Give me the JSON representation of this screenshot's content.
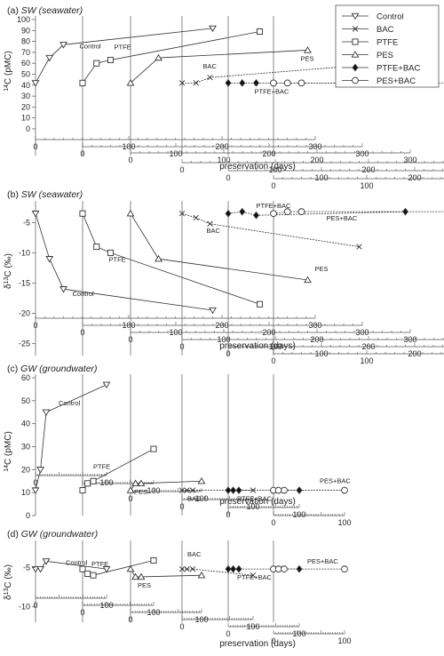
{
  "figure": {
    "legend": [
      {
        "name": "Control",
        "marker": "tri-down",
        "fill": "#ffffff"
      },
      {
        "name": "BAC",
        "marker": "x",
        "fill": "none"
      },
      {
        "name": "PTFE",
        "marker": "square",
        "fill": "#ffffff"
      },
      {
        "name": "PES",
        "marker": "tri-up",
        "fill": "#ffffff"
      },
      {
        "name": "PTFE+BAC",
        "marker": "diamond",
        "fill": "#111111"
      },
      {
        "name": "PES+BAC",
        "marker": "circle",
        "fill": "#ffffff"
      }
    ],
    "colors": {
      "line": "#333333",
      "axis": "#555555",
      "text": "#222222"
    }
  },
  "chart_data": [
    {
      "panel": "(a)",
      "title": "(a)",
      "title_italic": "SW (seawater)",
      "type": "line",
      "ylabel": "14C (pMC)",
      "ylabel_sup": "14",
      "ylabel_rest": "C (pMC)",
      "xlabel": "preservation (days)",
      "ylim": [
        0,
        100
      ],
      "yticks": [
        0,
        10,
        20,
        30,
        40,
        50,
        60,
        70,
        80,
        90,
        100
      ],
      "xlim": [
        0,
        300
      ],
      "series": [
        {
          "name": "Control",
          "marker": "tri-down",
          "x": [
            0,
            15,
            30,
            190
          ],
          "y": [
            42,
            65,
            77,
            92
          ]
        },
        {
          "name": "PTFE",
          "marker": "square",
          "x": [
            0,
            15,
            30,
            190
          ],
          "y": [
            42,
            60,
            63,
            89
          ]
        },
        {
          "name": "PES",
          "marker": "tri-up",
          "x": [
            0,
            30,
            190
          ],
          "y": [
            42,
            65,
            72
          ]
        },
        {
          "name": "BAC",
          "marker": "x",
          "x": [
            0,
            15,
            30,
            190
          ],
          "y": [
            42,
            42,
            47,
            58
          ]
        },
        {
          "name": "PTFE+BAC",
          "marker": "diamond",
          "x": [
            0,
            15,
            30,
            190
          ],
          "y": [
            42,
            42,
            42,
            42
          ]
        },
        {
          "name": "PES+BAC",
          "marker": "circle",
          "x": [
            0,
            15,
            30,
            190
          ],
          "y": [
            42,
            42,
            42,
            42
          ]
        }
      ]
    },
    {
      "panel": "(b)",
      "title": "(b)",
      "title_italic": "SW (seawater)",
      "type": "line",
      "ylabel": "δ13C (‰)",
      "ylabel_pre": "δ",
      "ylabel_sup": "13",
      "ylabel_rest": "C (‰)",
      "xlabel": "preservation (days)",
      "ylim": [
        -27,
        -2
      ],
      "yticks": [
        -5,
        -10,
        -15,
        -20,
        -25
      ],
      "xlim": [
        0,
        300
      ],
      "series": [
        {
          "name": "Control",
          "marker": "tri-down",
          "x": [
            0,
            15,
            30,
            190
          ],
          "y": [
            -3.5,
            -11,
            -16,
            -19.5
          ]
        },
        {
          "name": "PTFE",
          "marker": "square",
          "x": [
            0,
            15,
            30,
            190
          ],
          "y": [
            -3.5,
            -9,
            -10,
            -18.5
          ]
        },
        {
          "name": "PES",
          "marker": "tri-up",
          "x": [
            0,
            30,
            190
          ],
          "y": [
            -3.5,
            -11,
            -14.5
          ]
        },
        {
          "name": "BAC",
          "marker": "x",
          "x": [
            0,
            15,
            30,
            190
          ],
          "y": [
            -3.5,
            -4.2,
            -5.2,
            -9
          ]
        },
        {
          "name": "PTFE+BAC",
          "marker": "diamond",
          "x": [
            0,
            15,
            30,
            190
          ],
          "y": [
            -3.5,
            -3.2,
            -3.8,
            -3.2
          ]
        },
        {
          "name": "PES+BAC",
          "marker": "circle",
          "x": [
            0,
            15,
            30,
            190
          ],
          "y": [
            -3.5,
            -3.2,
            -3.2,
            -3.2
          ]
        }
      ]
    },
    {
      "panel": "(c)",
      "title": "(c)",
      "title_italic": "GW (groundwater)",
      "type": "line",
      "ylabel": "14C (pMC)",
      "ylabel_sup": "14",
      "ylabel_rest": "C (pMC)",
      "xlabel": "preservation (days)",
      "ylim": [
        0,
        60
      ],
      "yticks": [
        0,
        10,
        20,
        30,
        40,
        50,
        60
      ],
      "xlim": [
        0,
        150
      ],
      "series": [
        {
          "name": "Control",
          "marker": "tri-down",
          "x": [
            0,
            7,
            15,
            100
          ],
          "y": [
            11,
            20,
            45,
            57
          ]
        },
        {
          "name": "PTFE",
          "marker": "square",
          "x": [
            0,
            7,
            15,
            100
          ],
          "y": [
            11,
            14,
            15,
            29
          ]
        },
        {
          "name": "PES",
          "marker": "tri-up",
          "x": [
            0,
            7,
            15,
            100
          ],
          "y": [
            11,
            14,
            14,
            15
          ]
        },
        {
          "name": "BAC",
          "marker": "x",
          "x": [
            0,
            7,
            15,
            100
          ],
          "y": [
            11,
            11,
            11,
            11
          ]
        },
        {
          "name": "PTFE+BAC",
          "marker": "diamond",
          "x": [
            0,
            7,
            15,
            100
          ],
          "y": [
            11,
            11,
            11,
            11
          ]
        },
        {
          "name": "PES+BAC",
          "marker": "circle",
          "x": [
            0,
            7,
            15,
            100
          ],
          "y": [
            11,
            11,
            11,
            11
          ]
        }
      ]
    },
    {
      "panel": "(d)",
      "title": "(d)",
      "title_italic": "GW (groundwater)",
      "type": "line",
      "ylabel": "δ13C (‰)",
      "ylabel_pre": "δ",
      "ylabel_sup": "13",
      "ylabel_rest": "C (‰)",
      "xlabel": "preservation (days)",
      "ylim": [
        -12,
        -2
      ],
      "yticks": [
        -5,
        -10
      ],
      "xlim": [
        0,
        150
      ],
      "series": [
        {
          "name": "Control",
          "marker": "tri-down",
          "x": [
            0,
            7,
            15,
            100
          ],
          "y": [
            -5.2,
            -5.2,
            -4.2,
            -5.2
          ]
        },
        {
          "name": "PTFE",
          "marker": "square",
          "x": [
            0,
            7,
            15,
            100
          ],
          "y": [
            -5.2,
            -5.8,
            -6.0,
            -4.1
          ]
        },
        {
          "name": "PES",
          "marker": "tri-up",
          "x": [
            0,
            7,
            15,
            100
          ],
          "y": [
            -5.2,
            -6.2,
            -6.2,
            -6.0
          ]
        },
        {
          "name": "BAC",
          "marker": "x",
          "x": [
            0,
            7,
            15,
            100
          ],
          "y": [
            -5.2,
            -5.2,
            -5.2,
            -6.0
          ]
        },
        {
          "name": "PTFE+BAC",
          "marker": "diamond",
          "x": [
            0,
            7,
            15,
            100
          ],
          "y": [
            -5.2,
            -5.2,
            -5.2,
            -5.2
          ]
        },
        {
          "name": "PES+BAC",
          "marker": "circle",
          "x": [
            0,
            7,
            15,
            100
          ],
          "y": [
            -5.2,
            -5.2,
            -5.2,
            -5.2
          ]
        }
      ]
    }
  ]
}
